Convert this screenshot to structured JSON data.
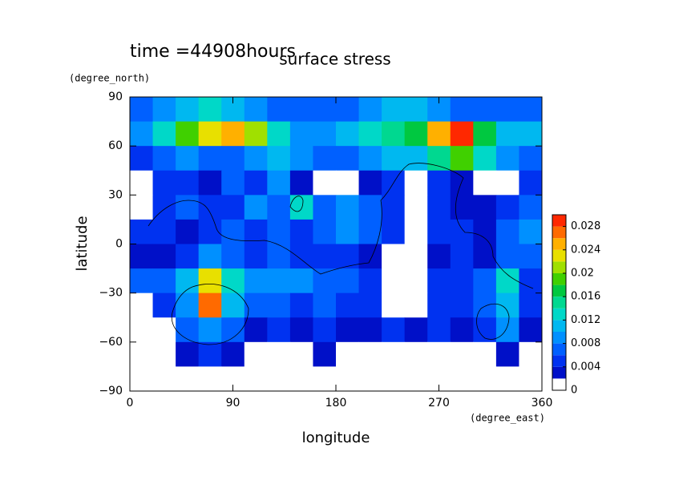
{
  "chart_data": {
    "type": "heatmap",
    "annotation": "time =44908hours",
    "title": "surface stress",
    "ylabel": "latitude",
    "yunit": "(degree_north)",
    "xlabel": "longitude",
    "xunit": "(degree_east)",
    "xlim": [
      0,
      360
    ],
    "xticks": [
      0,
      90,
      180,
      270,
      360
    ],
    "ylim": [
      -90,
      90
    ],
    "yticks": [
      {
        "value": -90,
        "label": "−90"
      },
      {
        "value": -60,
        "label": "−60"
      },
      {
        "value": -30,
        "label": "−30"
      },
      0,
      30,
      60,
      90
    ],
    "x": [
      10,
      30,
      50,
      70,
      90,
      110,
      130,
      150,
      170,
      190,
      210,
      230,
      250,
      270,
      290,
      310,
      330,
      350
    ],
    "y": [
      82.5,
      67.5,
      52.5,
      37.5,
      22.5,
      7.5,
      -7.5,
      -22.5,
      -37.5,
      -52.5,
      -67.5,
      -82.5
    ],
    "z": [
      [
        0.006,
        0.008,
        0.01,
        0.012,
        0.01,
        0.008,
        0.006,
        0.006,
        0.006,
        0.006,
        0.008,
        0.01,
        0.01,
        0.008,
        0.006,
        0.006,
        0.006,
        0.006
      ],
      [
        0.008,
        0.012,
        0.018,
        0.022,
        0.024,
        0.02,
        0.012,
        0.008,
        0.008,
        0.01,
        0.012,
        0.014,
        0.016,
        0.024,
        0.028,
        0.016,
        0.01,
        0.01
      ],
      [
        0.004,
        0.006,
        0.008,
        0.006,
        0.006,
        0.008,
        0.01,
        0.008,
        0.006,
        0.006,
        0.008,
        0.01,
        0.01,
        0.014,
        0.018,
        0.012,
        0.008,
        0.006
      ],
      [
        0.001,
        0.004,
        0.004,
        0.003,
        0.006,
        0.004,
        0.008,
        0.003,
        0.001,
        0.001,
        0.002,
        0.004,
        0.001,
        0.004,
        0.003,
        0.001,
        0.001,
        0.004
      ],
      [
        0.001,
        0.004,
        0.006,
        0.005,
        0.004,
        0.008,
        0.006,
        0.012,
        0.006,
        0.008,
        0.006,
        0.004,
        0.001,
        0.004,
        0.003,
        0.002,
        0.004,
        0.006
      ],
      [
        0.004,
        0.005,
        0.003,
        0.004,
        0.006,
        0.005,
        0.006,
        0.004,
        0.006,
        0.008,
        0.006,
        0.004,
        0.001,
        0.004,
        0.004,
        0.003,
        0.006,
        0.008
      ],
      [
        0.003,
        0.002,
        0.004,
        0.008,
        0.006,
        0.004,
        0.006,
        0.004,
        0.004,
        0.004,
        0.003,
        0.001,
        0.001,
        0.003,
        0.004,
        0.002,
        0.006,
        0.006
      ],
      [
        0.006,
        0.006,
        0.01,
        0.022,
        0.012,
        0.008,
        0.008,
        0.008,
        0.006,
        0.006,
        0.004,
        0.001,
        0.001,
        0.004,
        0.004,
        0.006,
        0.012,
        0.004
      ],
      [
        0.001,
        0.004,
        0.008,
        0.026,
        0.01,
        0.006,
        0.006,
        0.004,
        0.006,
        0.004,
        0.004,
        0.001,
        0.001,
        0.004,
        0.004,
        0.006,
        0.01,
        0.004
      ],
      [
        0.001,
        0.001,
        0.006,
        0.008,
        0.006,
        0.003,
        0.004,
        0.002,
        0.004,
        0.003,
        0.003,
        0.004,
        0.003,
        0.004,
        0.003,
        0.004,
        0.008,
        0.003
      ],
      [
        0.001,
        0.001,
        0.003,
        0.004,
        0.003,
        0.001,
        0.001,
        0.001,
        0.003,
        0.001,
        0.001,
        0.001,
        0.001,
        0.001,
        0.001,
        0.001,
        0.002,
        0.001
      ],
      [
        0,
        0,
        0,
        0,
        0,
        0,
        0,
        0,
        0,
        0,
        0,
        0,
        0,
        0,
        0,
        0,
        0,
        0
      ]
    ],
    "levels": [
      0,
      0.002,
      0.004,
      0.006,
      0.008,
      0.01,
      0.012,
      0.014,
      0.016,
      0.018,
      0.02,
      0.022,
      0.024,
      0.026,
      0.028,
      0.03
    ],
    "colors": [
      "#ffffff",
      "#0010c8",
      "#0032f0",
      "#0060ff",
      "#0090ff",
      "#00b8f0",
      "#00d8c8",
      "#00d890",
      "#00c840",
      "#40d000",
      "#a0e000",
      "#e8e000",
      "#ffb000",
      "#ff6a00",
      "#ff2800"
    ],
    "zticks": [
      0,
      0.004,
      0.008,
      0.012,
      0.016,
      0.02,
      0.024,
      0.028
    ]
  }
}
